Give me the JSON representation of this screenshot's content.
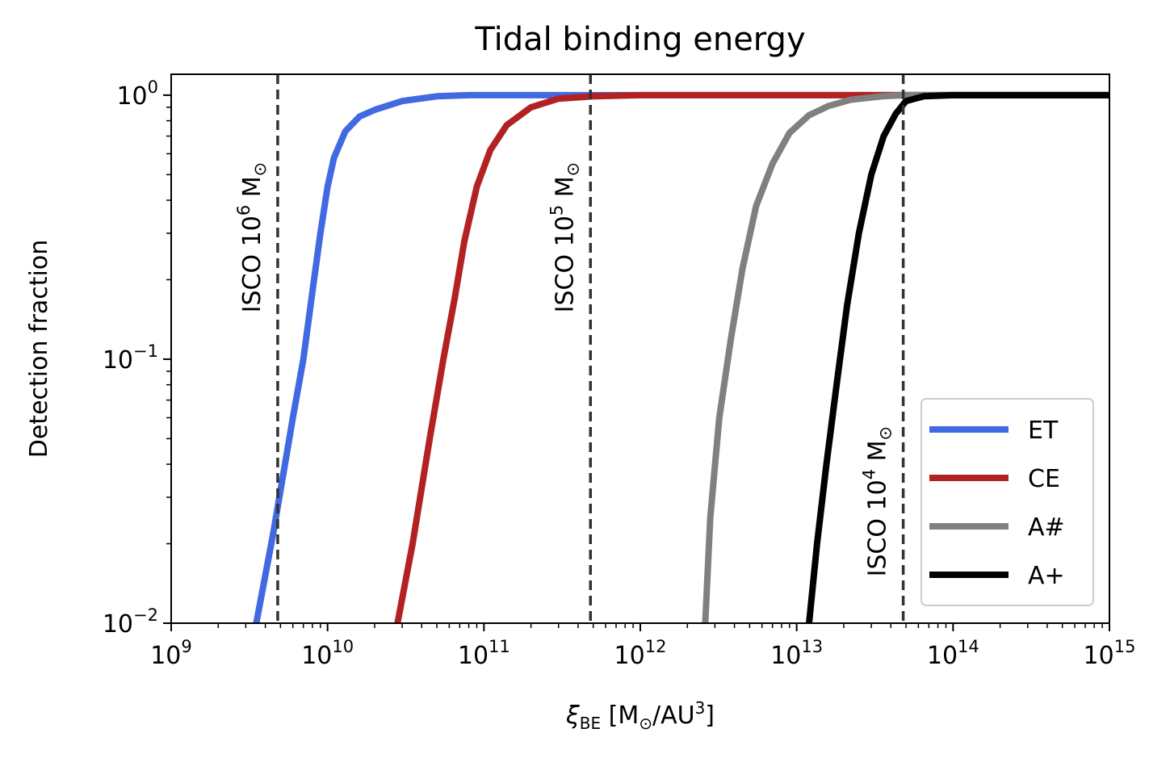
{
  "chart_data": {
    "type": "line",
    "title": "Tidal binding energy",
    "xlabel": {
      "symbol": "ξ",
      "subscript": "BE",
      "units_open": " [M",
      "sun": "⊙",
      "units_mid": "/AU",
      "units_exp": "3",
      "units_close": "]"
    },
    "ylabel": "Detection fraction",
    "xscale": "log",
    "yscale": "log",
    "xlim": [
      1000000000.0,
      1000000000000000.0
    ],
    "ylim": [
      0.01,
      1.2
    ],
    "x_ticks": [
      {
        "value": 1000000000.0,
        "base": "10",
        "exp": "9"
      },
      {
        "value": 10000000000.0,
        "base": "10",
        "exp": "10"
      },
      {
        "value": 100000000000.0,
        "base": "10",
        "exp": "11"
      },
      {
        "value": 1000000000000.0,
        "base": "10",
        "exp": "12"
      },
      {
        "value": 10000000000000.0,
        "base": "10",
        "exp": "13"
      },
      {
        "value": 100000000000000.0,
        "base": "10",
        "exp": "14"
      },
      {
        "value": 1000000000000000.0,
        "base": "10",
        "exp": "15"
      }
    ],
    "y_ticks": [
      {
        "value": 1,
        "base": "10",
        "exp": "0"
      },
      {
        "value": 0.1,
        "base": "10",
        "exp": "−1"
      },
      {
        "value": 0.01,
        "base": "10",
        "exp": "−2"
      }
    ],
    "vlines": [
      {
        "x": 4800000000.0,
        "label_pre": "ISCO 10",
        "exp": "6",
        "label_post": " M",
        "sun": "⊙",
        "label_y": 0.15
      },
      {
        "x": 480000000000.0,
        "label_pre": "ISCO 10",
        "exp": "5",
        "label_post": " M",
        "sun": "⊙",
        "label_y": 0.15
      },
      {
        "x": 48000000000000.0,
        "label_pre": "ISCO 10",
        "exp": "4",
        "label_post": " M",
        "sun": "⊙",
        "label_y": 0.015
      }
    ],
    "series": [
      {
        "name": "ET",
        "color": "#4169e1",
        "x": [
          3500000000.0,
          4500000000.0,
          6000000000.0,
          7000000000.0,
          8000000000.0,
          9000000000.0,
          10000000000.0,
          11000000000.0,
          13000000000.0,
          16000000000.0,
          20000000000.0,
          30000000000.0,
          50000000000.0,
          80000000000.0,
          100000000000.0,
          1000000000000000.0
        ],
        "y": [
          0.01,
          0.022,
          0.06,
          0.1,
          0.18,
          0.3,
          0.45,
          0.58,
          0.73,
          0.83,
          0.88,
          0.95,
          0.99,
          1.0,
          1.0,
          1.0
        ]
      },
      {
        "name": "CE",
        "color": "#b22222",
        "x": [
          28000000000.0,
          35000000000.0,
          45000000000.0,
          55000000000.0,
          65000000000.0,
          75000000000.0,
          90000000000.0,
          110000000000.0,
          140000000000.0,
          200000000000.0,
          300000000000.0,
          500000000000.0,
          1000000000000.0,
          1000000000000000.0
        ],
        "y": [
          0.01,
          0.02,
          0.05,
          0.1,
          0.17,
          0.28,
          0.45,
          0.62,
          0.77,
          0.9,
          0.97,
          0.99,
          1.0,
          1.0
        ]
      },
      {
        "name": "A#",
        "color": "#808080",
        "x": [
          2600000000000.0,
          2800000000000.0,
          3200000000000.0,
          3800000000000.0,
          4500000000000.0,
          5500000000000.0,
          7000000000000.0,
          9000000000000.0,
          12000000000000.0,
          16000000000000.0,
          22000000000000.0,
          35000000000000.0,
          50000000000000.0,
          1000000000000000.0
        ],
        "y": [
          0.01,
          0.025,
          0.06,
          0.12,
          0.22,
          0.38,
          0.55,
          0.72,
          0.84,
          0.91,
          0.96,
          0.99,
          1.0,
          1.0
        ]
      },
      {
        "name": "A+",
        "color": "#000000",
        "x": [
          12000000000000.0,
          13500000000000.0,
          15500000000000.0,
          18000000000000.0,
          21000000000000.0,
          25000000000000.0,
          30000000000000.0,
          36000000000000.0,
          43000000000000.0,
          50000000000000.0,
          65000000000000.0,
          100000000000000.0,
          1000000000000000.0
        ],
        "y": [
          0.01,
          0.02,
          0.04,
          0.08,
          0.16,
          0.3,
          0.5,
          0.7,
          0.85,
          0.95,
          0.99,
          1.0,
          1.0
        ]
      }
    ],
    "legend_position": "lower-right"
  }
}
